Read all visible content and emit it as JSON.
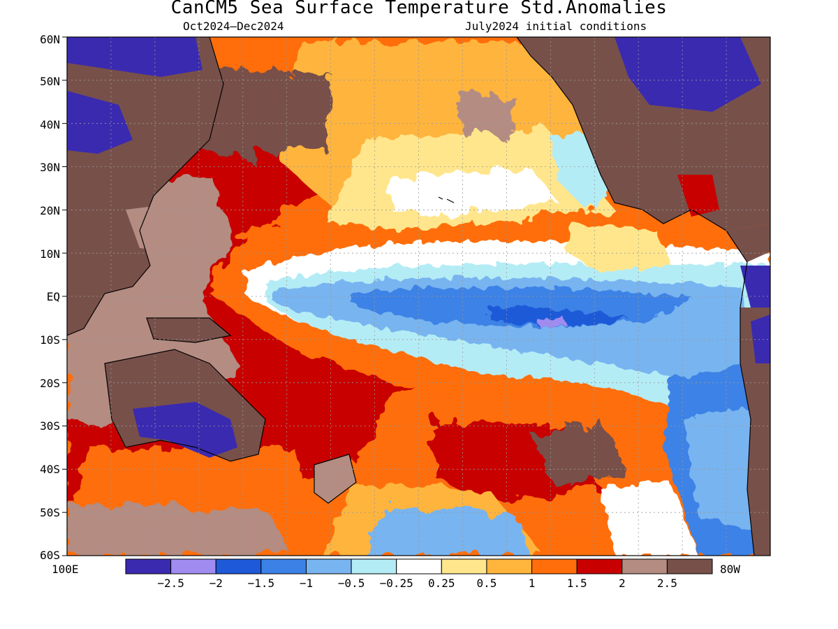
{
  "title": "CanCM5 Sea Surface Temperature Std.Anomalies",
  "subtitle_left": "Oct2024–Dec2024",
  "subtitle_right": "July2024 initial conditions",
  "lat_labels": [
    "60N",
    "50N",
    "40N",
    "30N",
    "20N",
    "10N",
    "EQ",
    "10S",
    "20S",
    "30S",
    "40S",
    "50S",
    "60S"
  ],
  "lon_left": "100E",
  "lon_right": "80W",
  "legend": {
    "colors": [
      "#3a2ab0",
      "#a08cf0",
      "#1e5ad8",
      "#3c82e6",
      "#78b4f0",
      "#b4ecf5",
      "#ffffff",
      "#ffe68c",
      "#ffb43c",
      "#ff6e0a",
      "#c80000",
      "#b48c82",
      "#78504a"
    ],
    "labels": [
      "−2.5",
      "−2",
      "−1.5",
      "−1",
      "−0.5",
      "−0.25",
      "0.25",
      "0.5",
      "1",
      "1.5",
      "2",
      "2.5"
    ]
  }
}
